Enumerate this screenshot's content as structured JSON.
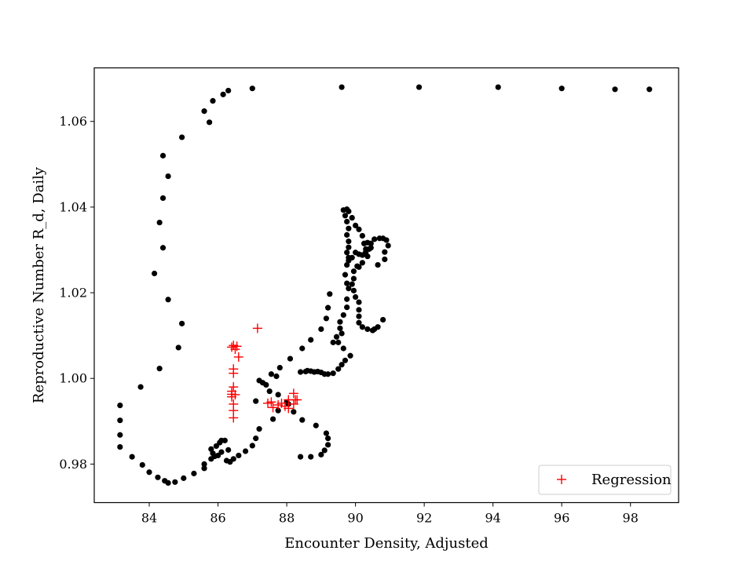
{
  "chart_data": {
    "type": "scatter",
    "title": "",
    "xlabel": "Encounter Density, Adjusted",
    "ylabel": "Reproductive Number R_d, Daily",
    "xlim": [
      82.4,
      99.4
    ],
    "ylim": [
      0.971,
      1.0725
    ],
    "xticks": [
      84,
      86,
      88,
      90,
      92,
      94,
      96,
      98
    ],
    "yticks": [
      0.98,
      1.0,
      1.02,
      1.04,
      1.06
    ],
    "xtick_labels": [
      "84",
      "86",
      "88",
      "90",
      "92",
      "94",
      "96",
      "98"
    ],
    "ytick_labels": [
      "0.98",
      "1.00",
      "1.02",
      "1.04",
      "1.06"
    ],
    "grid": false,
    "legend": {
      "position": "lower-right",
      "entries": [
        "Regression"
      ]
    },
    "series": [
      {
        "marker": "circle",
        "color": "#000000",
        "points": [
          [
            98.55,
            1.0675
          ],
          [
            97.55,
            1.0675
          ],
          [
            96.0,
            1.0677
          ],
          [
            94.15,
            1.068
          ],
          [
            91.85,
            1.068
          ],
          [
            89.6,
            1.068
          ],
          [
            87.0,
            1.0677
          ],
          [
            86.3,
            1.0672
          ],
          [
            86.15,
            1.0663
          ],
          [
            85.85,
            1.0648
          ],
          [
            85.6,
            1.0624
          ],
          [
            85.75,
            1.0598
          ],
          [
            84.95,
            1.0563
          ],
          [
            84.4,
            1.052
          ],
          [
            84.55,
            1.0472
          ],
          [
            84.4,
            1.0421
          ],
          [
            84.3,
            1.0364
          ],
          [
            84.4,
            1.0305
          ],
          [
            84.15,
            1.0245
          ],
          [
            84.55,
            1.0184
          ],
          [
            84.95,
            1.0128
          ],
          [
            84.85,
            1.0072
          ],
          [
            84.3,
            1.0023
          ],
          [
            83.75,
            0.998
          ],
          [
            83.15,
            0.9937
          ],
          [
            83.15,
            0.9902
          ],
          [
            83.15,
            0.9868
          ],
          [
            83.15,
            0.984
          ],
          [
            83.5,
            0.9817
          ],
          [
            83.8,
            0.9798
          ],
          [
            84.0,
            0.9781
          ],
          [
            84.25,
            0.9769
          ],
          [
            84.45,
            0.9761
          ],
          [
            84.55,
            0.9756
          ],
          [
            84.75,
            0.9758
          ],
          [
            85.0,
            0.9767
          ],
          [
            85.3,
            0.9778
          ],
          [
            85.6,
            0.979
          ],
          [
            85.6,
            0.98
          ],
          [
            85.8,
            0.9812
          ],
          [
            85.9,
            0.9818
          ],
          [
            86.0,
            0.982
          ],
          [
            85.85,
            0.9825
          ],
          [
            86.1,
            0.9828
          ],
          [
            85.8,
            0.9835
          ],
          [
            85.95,
            0.9842
          ],
          [
            86.05,
            0.985
          ],
          [
            86.2,
            0.9855
          ],
          [
            86.1,
            0.9855
          ],
          [
            86.3,
            0.9833
          ],
          [
            86.25,
            0.9808
          ],
          [
            86.35,
            0.9805
          ],
          [
            86.45,
            0.9812
          ],
          [
            86.6,
            0.982
          ],
          [
            86.8,
            0.983
          ],
          [
            87.0,
            0.9843
          ],
          [
            87.1,
            0.986
          ],
          [
            87.2,
            0.9882
          ],
          [
            87.6,
            0.9905
          ],
          [
            87.75,
            0.9925
          ],
          [
            88.0,
            0.9945
          ],
          [
            88.05,
            0.994
          ],
          [
            87.75,
            0.9962
          ],
          [
            87.5,
            0.997
          ],
          [
            87.4,
            0.9985
          ],
          [
            87.3,
            0.999
          ],
          [
            87.2,
            0.9995
          ],
          [
            87.1,
            0.9947
          ],
          [
            87.55,
            1.001
          ],
          [
            87.7,
            1.0005
          ],
          [
            87.8,
            1.0025
          ],
          [
            88.1,
            1.0046
          ],
          [
            88.45,
            1.007
          ],
          [
            88.7,
            1.009
          ],
          [
            89.0,
            1.0115
          ],
          [
            89.15,
            1.014
          ],
          [
            89.2,
            1.0165
          ],
          [
            89.25,
            1.0197
          ],
          [
            88.4,
            1.0015
          ],
          [
            88.55,
            1.0016
          ],
          [
            88.6,
            1.0018
          ],
          [
            88.7,
            1.0017
          ],
          [
            88.8,
            1.0015
          ],
          [
            88.9,
            1.0016
          ],
          [
            89.0,
            1.0014
          ],
          [
            89.1,
            1.001
          ],
          [
            89.2,
            1.001
          ],
          [
            89.35,
            1.0012
          ],
          [
            89.5,
            1.0022
          ],
          [
            89.6,
            1.0032
          ],
          [
            89.7,
            1.0042
          ],
          [
            89.85,
            1.0053
          ],
          [
            89.65,
            1.007
          ],
          [
            89.5,
            1.0084
          ],
          [
            89.35,
            1.0084
          ],
          [
            89.45,
            1.0097
          ],
          [
            89.6,
            1.0105
          ],
          [
            89.55,
            1.0117
          ],
          [
            89.55,
            1.0132
          ],
          [
            89.65,
            1.0148
          ],
          [
            89.75,
            1.0166
          ],
          [
            89.75,
            1.0185
          ],
          [
            89.8,
            1.021
          ],
          [
            89.75,
            1.0222
          ],
          [
            89.7,
            1.0242
          ],
          [
            89.75,
            1.0265
          ],
          [
            89.8,
            1.0282
          ],
          [
            89.75,
            1.0294
          ],
          [
            89.8,
            1.0306
          ],
          [
            89.8,
            1.032
          ],
          [
            89.75,
            1.0335
          ],
          [
            89.8,
            1.035
          ],
          [
            89.75,
            1.0366
          ],
          [
            89.7,
            1.038
          ],
          [
            89.65,
            1.0393
          ],
          [
            89.75,
            1.0395
          ],
          [
            89.8,
            1.039
          ],
          [
            89.9,
            1.0375
          ],
          [
            90.0,
            1.0357
          ],
          [
            90.1,
            1.0348
          ],
          [
            90.2,
            1.0333
          ],
          [
            90.25,
            1.0315
          ],
          [
            90.3,
            1.0302
          ],
          [
            90.35,
            1.0285
          ],
          [
            90.2,
            1.027
          ],
          [
            90.1,
            1.026
          ],
          [
            90.05,
            1.0262
          ],
          [
            89.95,
            1.025
          ],
          [
            89.95,
            1.0233
          ],
          [
            89.9,
            1.022
          ],
          [
            89.95,
            1.0205
          ],
          [
            90.0,
            1.019
          ],
          [
            90.1,
            1.0178
          ],
          [
            90.1,
            1.016
          ],
          [
            90.1,
            1.0145
          ],
          [
            90.1,
            1.013
          ],
          [
            90.2,
            1.012
          ],
          [
            90.35,
            1.0115
          ],
          [
            90.5,
            1.0112
          ],
          [
            90.55,
            1.0115
          ],
          [
            90.65,
            1.012
          ],
          [
            90.8,
            1.0137
          ],
          [
            90.65,
            1.0265
          ],
          [
            90.85,
            1.0278
          ],
          [
            90.85,
            1.0295
          ],
          [
            90.95,
            1.031
          ],
          [
            90.9,
            1.0323
          ],
          [
            90.8,
            1.0327
          ],
          [
            90.7,
            1.0327
          ],
          [
            90.55,
            1.0325
          ],
          [
            90.45,
            1.0315
          ],
          [
            90.4,
            1.0302
          ],
          [
            90.3,
            1.0295
          ],
          [
            90.2,
            1.0288
          ],
          [
            90.1,
            1.029
          ],
          [
            90.0,
            1.0294
          ],
          [
            89.9,
            1.0282
          ],
          [
            89.8,
            1.0275
          ],
          [
            90.35,
            1.0317
          ],
          [
            90.45,
            1.0305
          ],
          [
            88.4,
            0.9817
          ],
          [
            88.7,
            0.9817
          ],
          [
            89.0,
            0.9822
          ],
          [
            89.1,
            0.9832
          ],
          [
            89.2,
            0.9845
          ],
          [
            89.2,
            0.986
          ],
          [
            89.15,
            0.9872
          ],
          [
            88.85,
            0.989
          ],
          [
            88.45,
            0.9903
          ],
          [
            88.2,
            0.9922
          ]
        ]
      },
      {
        "name": "Regression",
        "marker": "plus",
        "color": "#ff0000",
        "points": [
          [
            87.15,
            1.0117
          ],
          [
            86.45,
            1.0077
          ],
          [
            86.55,
            1.0075
          ],
          [
            86.4,
            1.0073
          ],
          [
            86.5,
            1.0068
          ],
          [
            86.6,
            1.005
          ],
          [
            86.45,
            1.0022
          ],
          [
            86.45,
            1.0012
          ],
          [
            86.45,
            0.998
          ],
          [
            86.4,
            0.997
          ],
          [
            86.4,
            0.9963
          ],
          [
            86.5,
            0.9962
          ],
          [
            86.4,
            0.9957
          ],
          [
            86.45,
            0.994
          ],
          [
            86.45,
            0.9925
          ],
          [
            86.45,
            0.9908
          ],
          [
            87.45,
            0.9942
          ],
          [
            87.55,
            0.9945
          ],
          [
            87.6,
            0.9932
          ],
          [
            87.75,
            0.9938
          ],
          [
            87.85,
            0.9942
          ],
          [
            87.95,
            0.9935
          ],
          [
            88.05,
            0.995
          ],
          [
            88.2,
            0.9965
          ],
          [
            88.25,
            0.995
          ],
          [
            88.2,
            0.994
          ],
          [
            88.3,
            0.995
          ],
          [
            88.05,
            0.993
          ]
        ]
      }
    ]
  }
}
